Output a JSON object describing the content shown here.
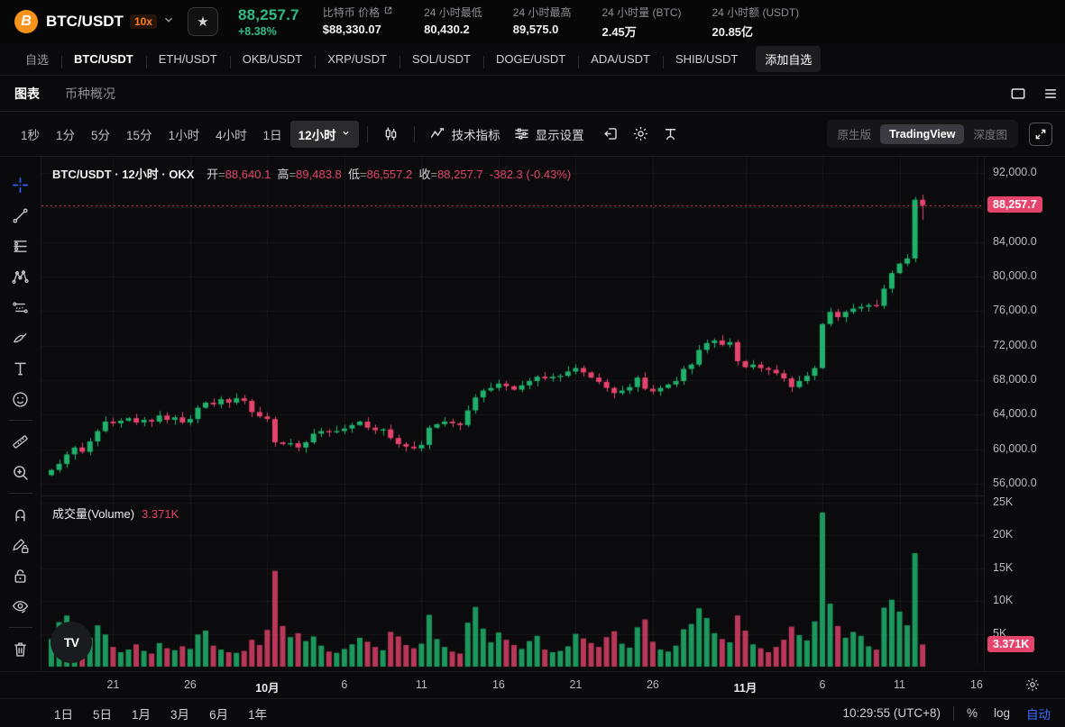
{
  "header": {
    "pair": "BTC/USDT",
    "leverage": "10x",
    "price": "88,257.7",
    "change": "+8.38%",
    "stats": [
      {
        "label": "比特币 价格",
        "value": "$88,330.07",
        "external_link": true
      },
      {
        "label": "24 小时最低",
        "value": "80,430.2"
      },
      {
        "label": "24 小时最高",
        "value": "89,575.0"
      },
      {
        "label": "24 小时量 (BTC)",
        "value": "2.45万"
      },
      {
        "label": "24 小时额 (USDT)",
        "value": "20.85亿"
      }
    ],
    "colors": {
      "up_green": "#2ebd85",
      "leverage_orange": "#ff7d1f"
    }
  },
  "pairs_row": {
    "tabs": [
      "自选",
      "BTC/USDT",
      "ETH/USDT",
      "OKB/USDT",
      "XRP/USDT",
      "SOL/USDT",
      "DOGE/USDT",
      "ADA/USDT",
      "SHIB/USDT"
    ],
    "active_tab": "BTC/USDT",
    "add_button": "添加自选"
  },
  "view_tabs": {
    "chart": "图表",
    "coin_overview": "币种概况"
  },
  "toolbar": {
    "intervals": [
      "1秒",
      "1分",
      "5分",
      "15分",
      "1小时",
      "4小时",
      "1日"
    ],
    "active_interval": "12小时",
    "indicators_label": "技术指标",
    "display_settings_label": "显示设置",
    "icons": [
      "candlestick-style-icon",
      "replay-icon",
      "gear-icon",
      "scale-icon"
    ],
    "modes": [
      "原生版",
      "TradingView",
      "深度图"
    ],
    "active_mode": "TradingView"
  },
  "left_rail_tools": [
    "crosshair",
    "trend-line",
    "fib-retracement",
    "xabcd-pattern",
    "forecast",
    "brush",
    "text",
    "emoji",
    "divider",
    "ruler",
    "zoom-in",
    "divider",
    "magnet",
    "draw-lock",
    "lock",
    "eye-hide",
    "divider",
    "trash"
  ],
  "legend": {
    "title": "BTC/USDT · 12小时 · OKX",
    "open_label": "开",
    "open": "88,640.1",
    "high_label": "高",
    "high": "89,483.8",
    "low_label": "低",
    "low": "86,557.2",
    "close_label": "收",
    "close": "88,257.7",
    "change": "-382.3 (-0.43%)"
  },
  "volume_pane": {
    "label": "成交量(Volume)",
    "value": "3.371K",
    "badge": "3.371K"
  },
  "price_axis": {
    "labels": [
      "92,000.0",
      "84,000.0",
      "80,000.0",
      "76,000.0",
      "72,000.0",
      "68,000.0",
      "64,000.0",
      "60,000.0",
      "56,000.0"
    ],
    "current_badge": "88,257.7"
  },
  "volume_axis": {
    "labels": [
      "25K",
      "20K",
      "15K",
      "10K",
      "5K"
    ]
  },
  "bottom_bar": {
    "ranges": [
      "1日",
      "5日",
      "1月",
      "3月",
      "6月",
      "1年"
    ],
    "clock": "10:29:55 (UTC+8)",
    "percent": "%",
    "log": "log",
    "auto": "自动"
  },
  "watermark": "TV",
  "chart_data": {
    "type": "candlestick+volume",
    "title": "BTC/USDT · 12小时 · OKX",
    "interval": "12小时",
    "price_axis": {
      "min": 54000,
      "max": 93500,
      "grid_values": [
        92000,
        88000,
        84000,
        80000,
        76000,
        72000,
        68000,
        64000,
        60000,
        56000
      ],
      "labeled_values": [
        92000,
        84000,
        80000,
        76000,
        72000,
        68000,
        64000,
        60000,
        56000
      ]
    },
    "volume_axis": {
      "grid_values_k": [
        25,
        20,
        15,
        10,
        5
      ]
    },
    "current_price": 88257.7,
    "current_volume_k": 3.371,
    "last_candle": {
      "open": 88640.1,
      "high": 89483.8,
      "low": 86557.2,
      "close": 88257.7
    },
    "first_open_k": 57.0,
    "closes_k": [
      57.6,
      58.3,
      59.4,
      60.2,
      59.7,
      60.9,
      62.1,
      63.2,
      63.0,
      63.3,
      63.6,
      63.1,
      63.4,
      63.2,
      63.9,
      63.4,
      63.7,
      63.1,
      63.5,
      64.8,
      65.4,
      65.2,
      65.8,
      65.4,
      65.9,
      65.6,
      64.3,
      63.8,
      63.5,
      60.8,
      60.6,
      60.7,
      60.2,
      60.8,
      61.8,
      62.1,
      62.0,
      62.1,
      62.4,
      62.8,
      63.2,
      62.5,
      62.2,
      62.3,
      61.3,
      60.6,
      60.3,
      60.1,
      60.5,
      62.5,
      62.9,
      63.2,
      63.0,
      62.8,
      64.5,
      66.0,
      66.8,
      67.1,
      67.6,
      67.3,
      66.9,
      67.4,
      67.9,
      68.4,
      68.2,
      68.4,
      68.5,
      69.0,
      69.4,
      68.9,
      68.3,
      67.8,
      67.1,
      66.5,
      66.8,
      67.2,
      68.3,
      67.0,
      66.7,
      67.1,
      67.5,
      67.9,
      69.3,
      69.8,
      71.5,
      72.3,
      72.6,
      72.1,
      72.4,
      70.2,
      69.5,
      69.8,
      69.4,
      69.2,
      68.8,
      68.2,
      67.2,
      67.9,
      68.5,
      69.4,
      74.5,
      75.9,
      75.3,
      75.9,
      76.3,
      76.5,
      76.7,
      76.6,
      78.6,
      80.4,
      81.5,
      82.1,
      88.9,
      88.2577
    ],
    "volumes_k": [
      4.2,
      6.8,
      7.8,
      5.2,
      3.1,
      4.4,
      6.3,
      4.9,
      3.0,
      2.2,
      2.6,
      3.4,
      2.4,
      2.0,
      3.6,
      2.8,
      2.5,
      3.1,
      2.7,
      4.9,
      5.5,
      3.2,
      2.6,
      2.2,
      2.1,
      2.4,
      4.1,
      3.3,
      5.6,
      14.6,
      6.2,
      4.5,
      5.1,
      3.9,
      4.6,
      3.2,
      2.3,
      2.1,
      2.7,
      3.4,
      4.4,
      3.8,
      3.0,
      2.5,
      5.3,
      4.6,
      3.3,
      2.8,
      3.5,
      7.9,
      4.2,
      3.0,
      2.3,
      2.0,
      6.7,
      9.1,
      5.8,
      3.7,
      5.2,
      4.1,
      3.3,
      2.7,
      3.9,
      4.7,
      2.6,
      2.2,
      2.4,
      3.1,
      5.0,
      4.3,
      3.6,
      3.0,
      4.5,
      5.4,
      3.5,
      2.9,
      6.0,
      7.2,
      3.8,
      2.6,
      2.3,
      3.2,
      5.7,
      6.5,
      8.9,
      7.4,
      5.1,
      4.2,
      3.7,
      7.8,
      5.5,
      3.4,
      2.8,
      2.2,
      3.0,
      4.1,
      6.1,
      4.8,
      4.0,
      6.9,
      23.5,
      9.6,
      6.2,
      4.4,
      5.3,
      4.7,
      3.1,
      2.6,
      9.0,
      10.2,
      8.4,
      6.3,
      17.3,
      3.371
    ],
    "x_ticks": [
      {
        "i": 8,
        "label": "21"
      },
      {
        "i": 18,
        "label": "26"
      },
      {
        "i": 28,
        "label": "10月",
        "major": true
      },
      {
        "i": 38,
        "label": "6"
      },
      {
        "i": 48,
        "label": "11"
      },
      {
        "i": 58,
        "label": "16"
      },
      {
        "i": 68,
        "label": "21"
      },
      {
        "i": 78,
        "label": "26"
      },
      {
        "i": 90,
        "label": "11月",
        "major": true
      },
      {
        "i": 100,
        "label": "6"
      },
      {
        "i": 110,
        "label": "11"
      },
      {
        "i": 120,
        "label": "16"
      }
    ],
    "colors": {
      "up": "#20b26c",
      "down": "#e5446d",
      "current_line": "#e5446d",
      "grid": "rgba(255,255,255,0.055)"
    },
    "legend_position": "top-left",
    "grid": true
  }
}
